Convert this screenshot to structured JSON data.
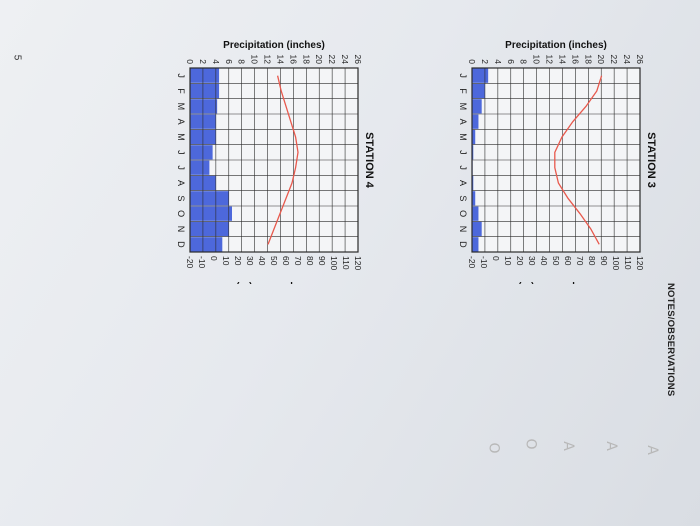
{
  "page_number": "5",
  "notes_label": "NOTES/OBSERVATIONS",
  "pencil_marks": [
    "A",
    "A",
    "A",
    "O",
    "O"
  ],
  "colors": {
    "grid": "#2b2b2b",
    "temperature_line": "#e8594d",
    "precipitation": "#2f4fd6"
  },
  "chart_data": [
    {
      "type": "bar",
      "title": "STATION 3",
      "categories": [
        "J",
        "F",
        "M",
        "A",
        "M",
        "J",
        "J",
        "A",
        "S",
        "O",
        "N",
        "D"
      ],
      "series": [
        {
          "type": "bar",
          "axis": "left",
          "values": [
            2.5,
            2,
            1.5,
            1,
            0.5,
            0.2,
            0.1,
            0.2,
            0.5,
            1,
            1.5,
            1
          ]
        },
        {
          "type": "line",
          "axis": "right",
          "values": [
            88,
            84,
            75,
            64,
            55,
            49,
            49,
            52,
            60,
            70,
            79,
            86
          ]
        }
      ],
      "ylabel_left": "Precipitation (inches)",
      "ylabel_right": "Temperature (°F)",
      "yticks_left": [
        0,
        2,
        4,
        6,
        8,
        10,
        12,
        14,
        16,
        18,
        20,
        22,
        24,
        26
      ],
      "yticks_right": [
        -20,
        -10,
        0,
        10,
        20,
        30,
        40,
        50,
        60,
        70,
        80,
        90,
        100,
        110,
        120
      ],
      "ylim_left": [
        0,
        26
      ],
      "ylim_right": [
        -20,
        120
      ],
      "grid": true
    },
    {
      "type": "bar",
      "title": "STATION 4",
      "categories": [
        "J",
        "F",
        "M",
        "A",
        "M",
        "J",
        "J",
        "A",
        "S",
        "O",
        "N",
        "D"
      ],
      "series": [
        {
          "type": "bar",
          "axis": "left",
          "values": [
            4.5,
            4.5,
            4.2,
            4,
            4,
            3.5,
            3,
            4,
            6,
            6.5,
            6,
            5
          ]
        },
        {
          "type": "line",
          "axis": "right",
          "values": [
            53,
            56,
            60,
            64,
            68,
            70,
            68,
            65,
            60,
            55,
            50,
            45
          ]
        }
      ],
      "ylabel_left": "Precipitation (inches)",
      "ylabel_right": "Temperature (°F)",
      "yticks_left": [
        0,
        2,
        4,
        6,
        8,
        10,
        12,
        14,
        16,
        18,
        20,
        22,
        24,
        26
      ],
      "yticks_right": [
        -20,
        -10,
        0,
        10,
        20,
        30,
        40,
        50,
        60,
        70,
        80,
        90,
        100,
        110,
        120
      ],
      "ylim_left": [
        0,
        26
      ],
      "ylim_right": [
        -20,
        120
      ],
      "grid": true
    }
  ]
}
